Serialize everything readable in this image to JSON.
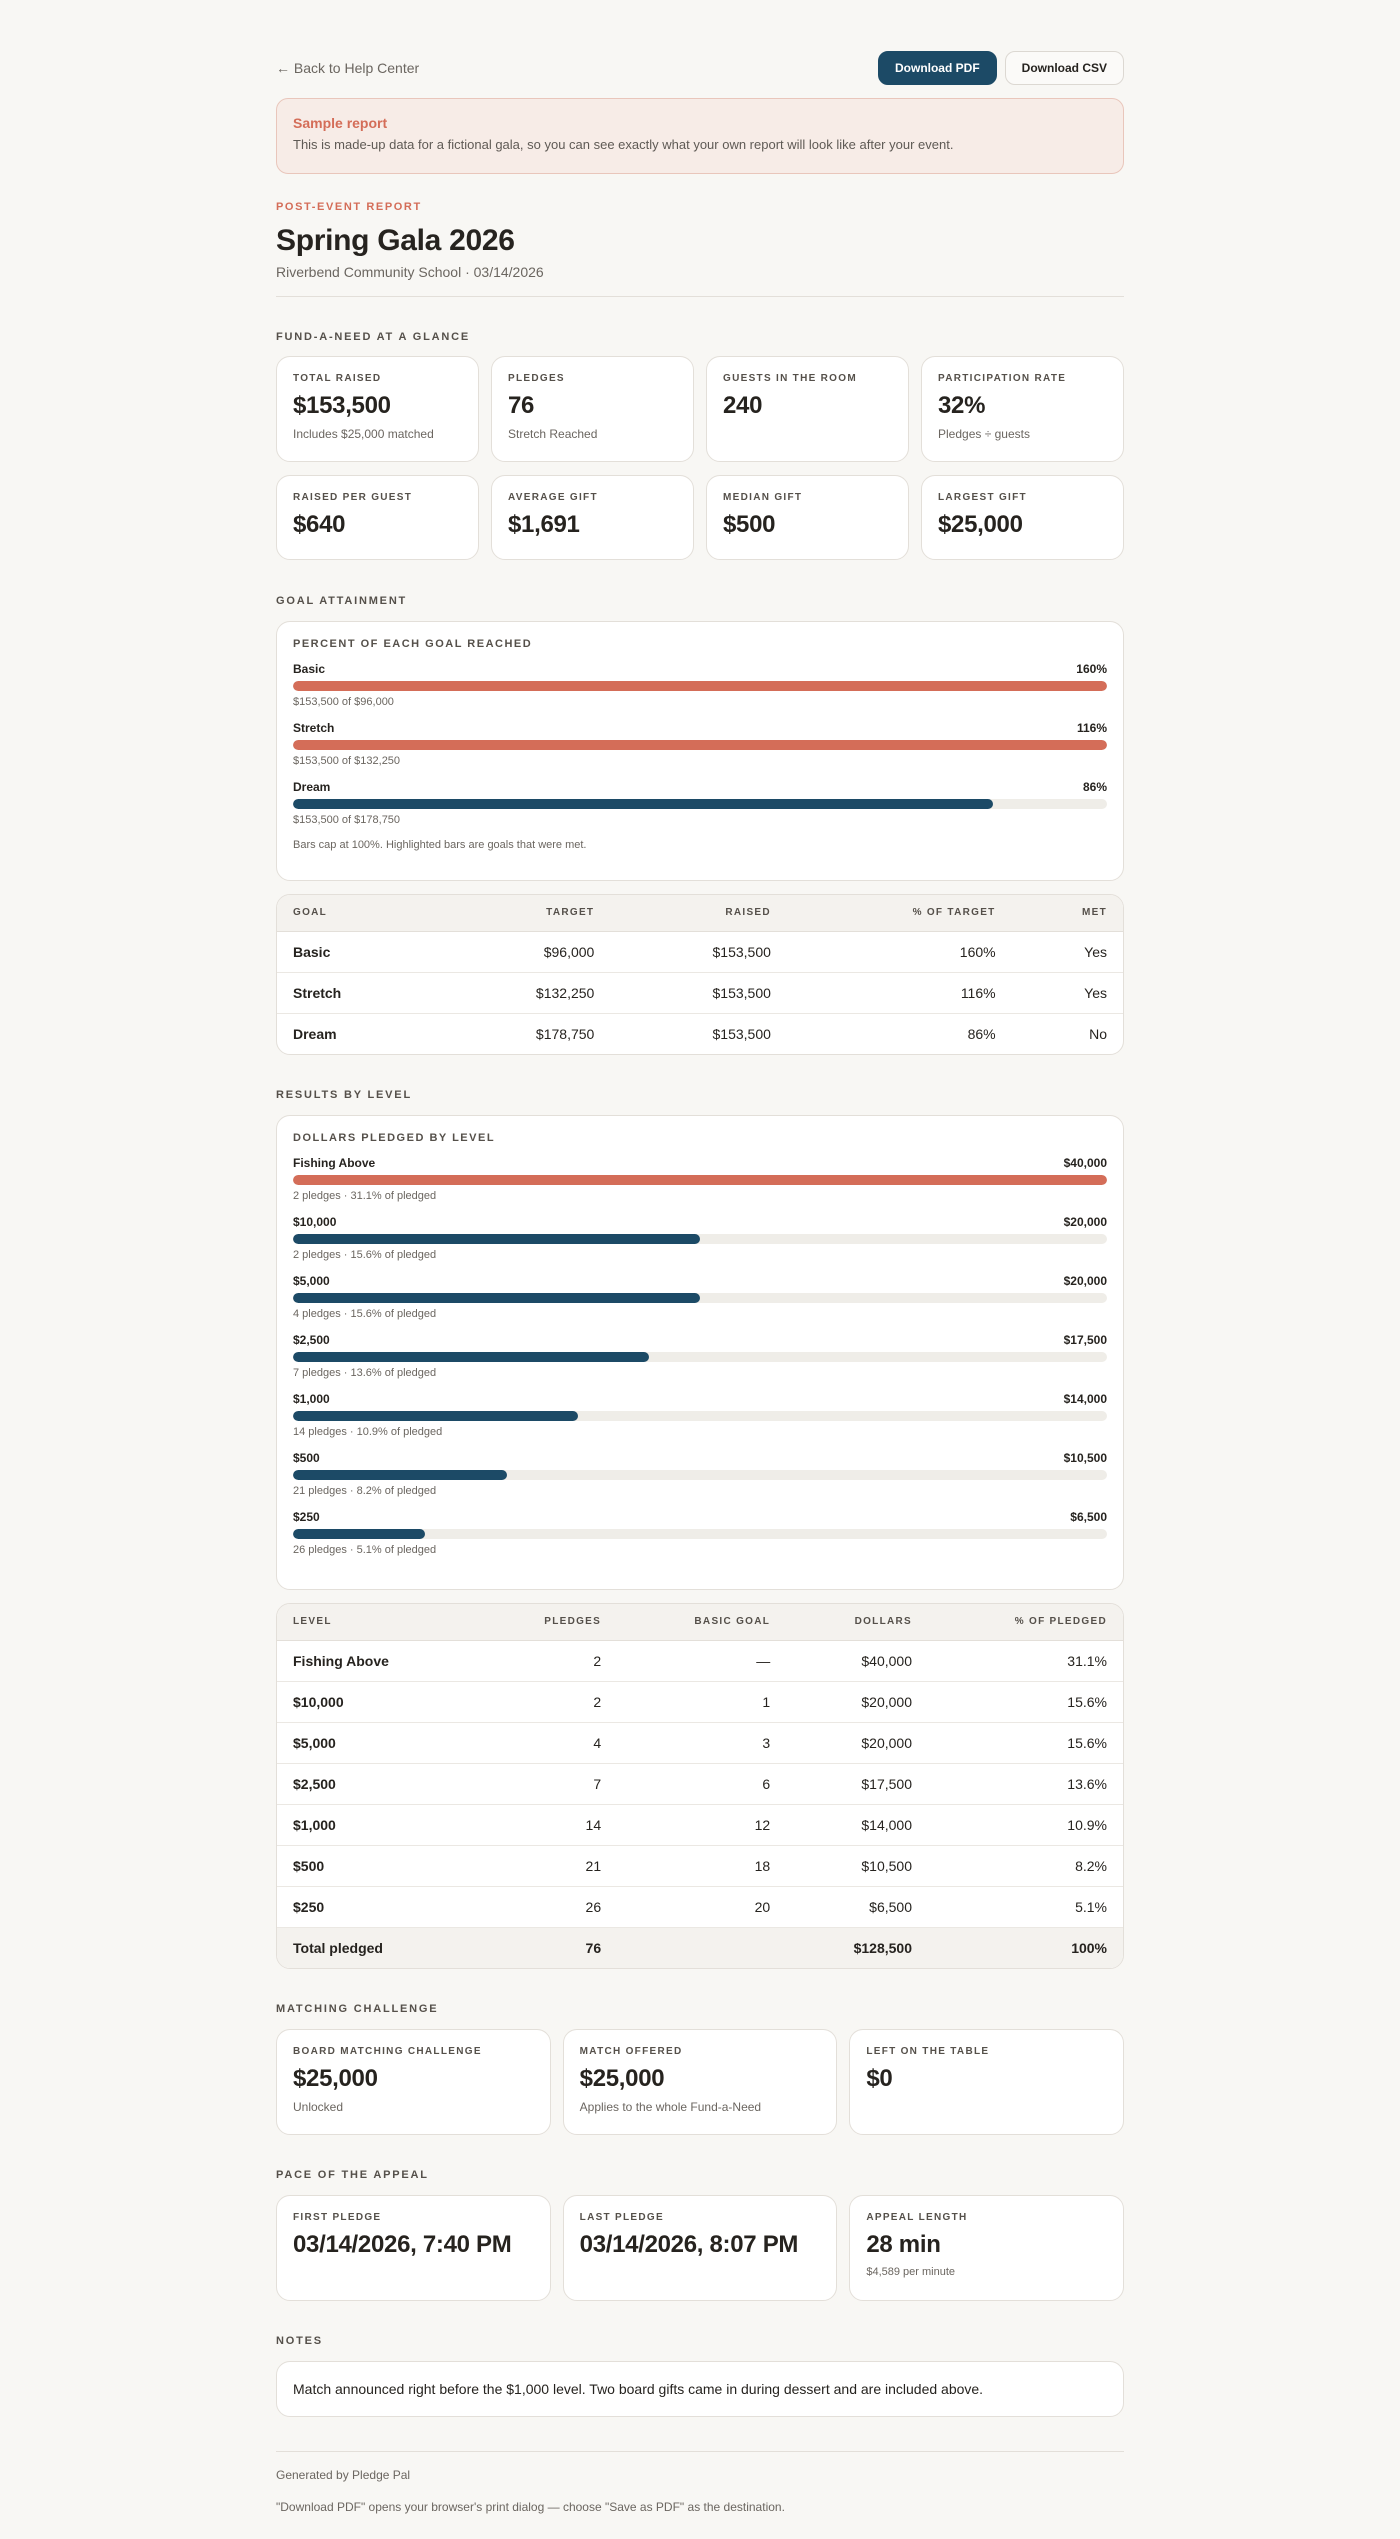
{
  "topbar": {
    "back_label": "← Back to Help Center",
    "download_pdf": "Download PDF",
    "download_csv": "Download CSV"
  },
  "banner": {
    "title": "Sample report",
    "text": "This is made-up data for a fictional gala, so you can see exactly what your own report will look like after your event."
  },
  "header": {
    "eyebrow": "POST-EVENT REPORT",
    "title": "Spring Gala 2026",
    "subtitle": "Riverbend Community School · 03/14/2026"
  },
  "glance": {
    "label": "FUND-A-NEED AT A GLANCE",
    "cards": [
      {
        "label": "TOTAL RAISED",
        "value": "$153,500",
        "sub": "Includes $25,000 matched"
      },
      {
        "label": "PLEDGES",
        "value": "76",
        "sub": "Stretch Reached"
      },
      {
        "label": "GUESTS IN THE ROOM",
        "value": "240",
        "sub": ""
      },
      {
        "label": "PARTICIPATION RATE",
        "value": "32%",
        "sub": "Pledges ÷ guests"
      },
      {
        "label": "RAISED PER GUEST",
        "value": "$640",
        "sub": ""
      },
      {
        "label": "AVERAGE GIFT",
        "value": "$1,691",
        "sub": ""
      },
      {
        "label": "MEDIAN GIFT",
        "value": "$500",
        "sub": ""
      },
      {
        "label": "LARGEST GIFT",
        "value": "$25,000",
        "sub": ""
      }
    ]
  },
  "goals": {
    "label": "GOAL ATTAINMENT",
    "chart_title": "PERCENT OF EACH GOAL REACHED",
    "bars": [
      {
        "name": "Basic",
        "pct_label": "160%",
        "fill": 1.0,
        "met": true,
        "note": "$153,500 of $96,000"
      },
      {
        "name": "Stretch",
        "pct_label": "116%",
        "fill": 1.0,
        "met": true,
        "note": "$153,500 of $132,250"
      },
      {
        "name": "Dream",
        "pct_label": "86%",
        "fill": 0.86,
        "met": false,
        "note": "$153,500 of $178,750"
      }
    ],
    "footnote": "Bars cap at 100%. Highlighted bars are goals that were met.",
    "table": {
      "headers": [
        "GOAL",
        "TARGET",
        "RAISED",
        "% OF TARGET",
        "MET"
      ],
      "rows": [
        [
          "Basic",
          "$96,000",
          "$153,500",
          "160%",
          "Yes"
        ],
        [
          "Stretch",
          "$132,250",
          "$153,500",
          "116%",
          "Yes"
        ],
        [
          "Dream",
          "$178,750",
          "$153,500",
          "86%",
          "No"
        ]
      ]
    }
  },
  "levels": {
    "label": "RESULTS BY LEVEL",
    "chart_title": "DOLLARS PLEDGED BY LEVEL",
    "bars": [
      {
        "name": "Fishing Above",
        "amount": "$40,000",
        "fill": 1.0,
        "highlight": true,
        "note": "2 pledges · 31.1% of pledged"
      },
      {
        "name": "$10,000",
        "amount": "$20,000",
        "fill": 0.5,
        "highlight": false,
        "note": "2 pledges · 15.6% of pledged"
      },
      {
        "name": "$5,000",
        "amount": "$20,000",
        "fill": 0.5,
        "highlight": false,
        "note": "4 pledges · 15.6% of pledged"
      },
      {
        "name": "$2,500",
        "amount": "$17,500",
        "fill": 0.4375,
        "highlight": false,
        "note": "7 pledges · 13.6% of pledged"
      },
      {
        "name": "$1,000",
        "amount": "$14,000",
        "fill": 0.35,
        "highlight": false,
        "note": "14 pledges · 10.9% of pledged"
      },
      {
        "name": "$500",
        "amount": "$10,500",
        "fill": 0.2625,
        "highlight": false,
        "note": "21 pledges · 8.2% of pledged"
      },
      {
        "name": "$250",
        "amount": "$6,500",
        "fill": 0.1625,
        "highlight": false,
        "note": "26 pledges · 5.1% of pledged"
      }
    ],
    "table": {
      "headers": [
        "LEVEL",
        "PLEDGES",
        "BASIC GOAL",
        "DOLLARS",
        "% OF PLEDGED"
      ],
      "rows": [
        [
          "Fishing Above",
          "2",
          "—",
          "$40,000",
          "31.1%"
        ],
        [
          "$10,000",
          "2",
          "1",
          "$20,000",
          "15.6%"
        ],
        [
          "$5,000",
          "4",
          "3",
          "$20,000",
          "15.6%"
        ],
        [
          "$2,500",
          "7",
          "6",
          "$17,500",
          "13.6%"
        ],
        [
          "$1,000",
          "14",
          "12",
          "$14,000",
          "10.9%"
        ],
        [
          "$500",
          "21",
          "18",
          "$10,500",
          "8.2%"
        ],
        [
          "$250",
          "26",
          "20",
          "$6,500",
          "5.1%"
        ]
      ],
      "total": [
        "Total pledged",
        "76",
        "",
        "$128,500",
        "100%"
      ]
    }
  },
  "matching": {
    "label": "MATCHING CHALLENGE",
    "cards": [
      {
        "label": "BOARD MATCHING CHALLENGE",
        "value": "$25,000",
        "sub": "Unlocked"
      },
      {
        "label": "MATCH OFFERED",
        "value": "$25,000",
        "sub": "Applies to the whole Fund-a-Need"
      },
      {
        "label": "LEFT ON THE TABLE",
        "value": "$0",
        "sub": ""
      }
    ]
  },
  "pace": {
    "label": "PACE OF THE APPEAL",
    "cards": [
      {
        "label": "FIRST PLEDGE",
        "value": "03/14/2026, 7:40 PM",
        "sub": ""
      },
      {
        "label": "LAST PLEDGE",
        "value": "03/14/2026, 8:07 PM",
        "sub": ""
      },
      {
        "label": "APPEAL LENGTH",
        "value": "28 min",
        "sub": "$4,589 per minute"
      }
    ]
  },
  "notes": {
    "label": "NOTES",
    "text": "Match announced right before the $1,000 level. Two board gifts came in during dessert and are included above."
  },
  "footer": {
    "generated": "Generated by Pledge Pal",
    "hint": "\"Download PDF\" opens your browser's print dialog — choose \"Save as PDF\" as the destination."
  },
  "colors": {
    "accent": "#d46d58",
    "primary": "#1c4a66",
    "track": "#efede8"
  }
}
